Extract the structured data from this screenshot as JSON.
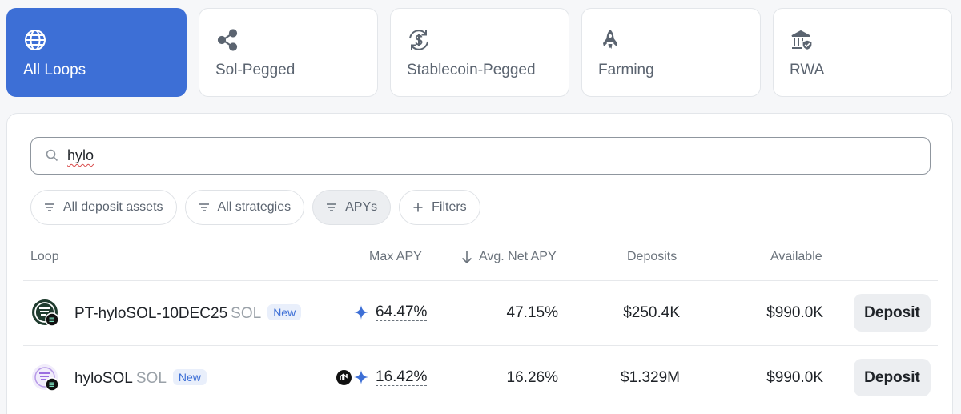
{
  "categories": [
    {
      "label": "All Loops",
      "icon": "globe-icon",
      "active": true
    },
    {
      "label": "Sol-Pegged",
      "icon": "share-icon",
      "active": false
    },
    {
      "label": "Stablecoin-Pegged",
      "icon": "dollar-cycle-icon",
      "active": false
    },
    {
      "label": "Farming",
      "icon": "rocket-icon",
      "active": false
    },
    {
      "label": "RWA",
      "icon": "bank-shield-icon",
      "active": false
    }
  ],
  "search": {
    "value": "hylo",
    "placeholder": ""
  },
  "filters": [
    {
      "label": "All deposit assets",
      "icon": "filter-icon"
    },
    {
      "label": "All strategies",
      "icon": "filter-icon"
    },
    {
      "label": "APYs",
      "icon": "filter-icon",
      "active": true
    },
    {
      "label": "Filters",
      "icon": "plus-icon"
    }
  ],
  "table": {
    "headers": {
      "loop": "Loop",
      "max_apy": "Max APY",
      "avg_net_apy": "Avg. Net APY",
      "deposits": "Deposits",
      "available": "Available"
    },
    "rows": [
      {
        "name": "PT-hyloSOL-10DEC25",
        "unit": "SOL",
        "badge": "New",
        "max_apy": "64.47%",
        "avg_net_apy": "47.15%",
        "deposits": "$250.4K",
        "available": "$990.0K",
        "action": "Deposit"
      },
      {
        "name": "hyloSOL",
        "unit": "SOL",
        "badge": "New",
        "max_apy": "16.42%",
        "avg_net_apy": "16.26%",
        "deposits": "$1.329M",
        "available": "$990.0K",
        "action": "Deposit"
      }
    ]
  },
  "colors": {
    "accent": "#3d6fd6",
    "sparkle": "#3d6fd6"
  }
}
